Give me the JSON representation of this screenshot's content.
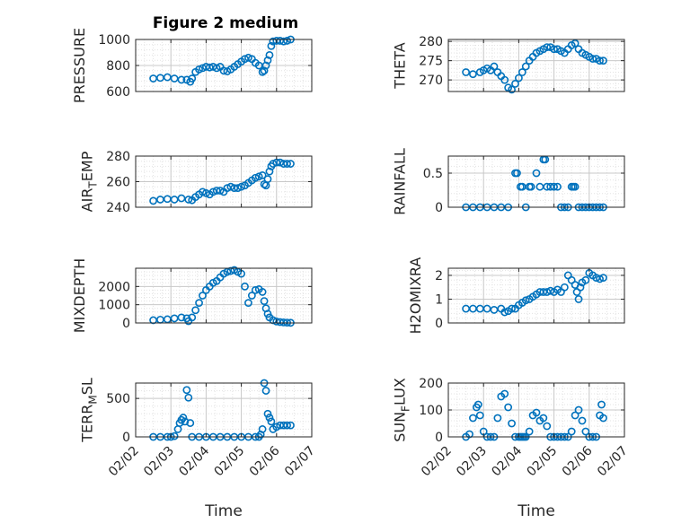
{
  "title": "Figure 2 medium",
  "colors": {
    "marker": "#0072BD",
    "axis": "#262626",
    "grid": "#c8c8c8",
    "minor_grid": "#e3e3e3"
  },
  "chart_data": [
    {
      "type": "scatter",
      "panel": "top-left",
      "ylabel": "PRESSURE",
      "ylabel_sub": "",
      "ylim": [
        600,
        1000
      ],
      "yticks": [
        600,
        800,
        1000
      ],
      "ytick_labels": [
        "600",
        "800",
        "1000"
      ],
      "x_dates": [
        "02/02",
        "02/03",
        "02/04",
        "02/05",
        "02/06",
        "02/07"
      ],
      "grid": true,
      "minor_grid": true,
      "xlabel": "",
      "x": [
        2.5,
        2.7,
        2.9,
        3.1,
        3.3,
        3.45,
        3.55,
        3.6,
        3.7,
        3.8,
        3.9,
        4.0,
        4.1,
        4.2,
        4.3,
        4.4,
        4.5,
        4.6,
        4.7,
        4.8,
        4.9,
        5.0,
        5.1,
        5.2,
        5.3,
        5.4,
        5.5,
        5.6,
        5.65,
        5.7,
        5.75,
        5.8,
        5.85,
        5.9,
        6.0,
        6.1,
        6.2,
        6.3,
        6.4
      ],
      "values": [
        700,
        705,
        710,
        700,
        690,
        690,
        675,
        700,
        750,
        770,
        780,
        790,
        785,
        790,
        780,
        790,
        760,
        755,
        770,
        790,
        810,
        830,
        850,
        860,
        850,
        820,
        800,
        750,
        760,
        800,
        840,
        880,
        950,
        985,
        990,
        990,
        985,
        990,
        1000
      ]
    },
    {
      "type": "scatter",
      "panel": "top-right",
      "ylabel": "THETA",
      "ylabel_sub": "",
      "ylim": [
        267,
        280.5
      ],
      "yticks": [
        270,
        275,
        280
      ],
      "ytick_labels": [
        "270",
        "275",
        "280"
      ],
      "x_dates": [
        "02/02",
        "02/03",
        "02/04",
        "02/05",
        "02/06",
        "02/07"
      ],
      "grid": true,
      "minor_grid": true,
      "xlabel": "",
      "x": [
        2.5,
        2.7,
        2.9,
        3.0,
        3.1,
        3.2,
        3.3,
        3.4,
        3.5,
        3.6,
        3.7,
        3.8,
        3.9,
        4.0,
        4.1,
        4.2,
        4.3,
        4.4,
        4.5,
        4.6,
        4.7,
        4.8,
        4.9,
        5.0,
        5.1,
        5.2,
        5.3,
        5.4,
        5.5,
        5.6,
        5.7,
        5.8,
        5.9,
        6.0,
        6.1,
        6.2,
        6.3,
        6.4
      ],
      "values": [
        272,
        271.5,
        272,
        272.5,
        273,
        272.5,
        273.5,
        272,
        271,
        270,
        268,
        267.5,
        269,
        270.5,
        272,
        273.5,
        275,
        276,
        277,
        277.5,
        278,
        278.5,
        278.5,
        278,
        278,
        277.5,
        277,
        278,
        279,
        279.5,
        278,
        277,
        276.5,
        276,
        275.5,
        275.5,
        275,
        275
      ]
    },
    {
      "type": "scatter",
      "panel": "row2-left",
      "ylabel": "AIR",
      "ylabel_sub": "T",
      "ylabel_after": "EMP",
      "ylim": [
        240,
        280
      ],
      "yticks": [
        240,
        260,
        280
      ],
      "ytick_labels": [
        "240",
        "260",
        "280"
      ],
      "x_dates": [
        "02/02",
        "02/03",
        "02/04",
        "02/05",
        "02/06",
        "02/07"
      ],
      "grid": true,
      "minor_grid": true,
      "xlabel": "",
      "x": [
        2.5,
        2.7,
        2.9,
        3.1,
        3.3,
        3.5,
        3.6,
        3.7,
        3.8,
        3.9,
        4.0,
        4.1,
        4.2,
        4.3,
        4.4,
        4.5,
        4.6,
        4.7,
        4.8,
        4.9,
        5.0,
        5.1,
        5.2,
        5.3,
        5.4,
        5.5,
        5.6,
        5.65,
        5.7,
        5.75,
        5.8,
        5.85,
        5.9,
        6.0,
        6.1,
        6.2,
        6.3,
        6.4
      ],
      "values": [
        245,
        246,
        246.5,
        246,
        247,
        246,
        245.5,
        248,
        250,
        252,
        251,
        250,
        252,
        253,
        253,
        252,
        255,
        256,
        255,
        255,
        256,
        257,
        259,
        261,
        263,
        264,
        265,
        258,
        257,
        262,
        268,
        272,
        274,
        275,
        275,
        274,
        274,
        274
      ]
    },
    {
      "type": "scatter",
      "panel": "row2-right",
      "ylabel": "RAINFALL",
      "ylabel_sub": "",
      "ylim": [
        0,
        0.75
      ],
      "yticks": [
        0,
        0.5
      ],
      "ytick_labels": [
        "0",
        "0.5"
      ],
      "x_dates": [
        "02/02",
        "02/03",
        "02/04",
        "02/05",
        "02/06",
        "02/07"
      ],
      "grid": true,
      "minor_grid": true,
      "xlabel": "",
      "x": [
        2.5,
        2.7,
        2.9,
        3.1,
        3.3,
        3.5,
        3.7,
        3.9,
        3.95,
        4.05,
        4.1,
        4.2,
        4.3,
        4.35,
        4.5,
        4.6,
        4.7,
        4.75,
        4.8,
        4.9,
        5.0,
        5.1,
        5.2,
        5.3,
        5.4,
        5.5,
        5.55,
        5.6,
        5.7,
        5.8,
        5.9,
        6.0,
        6.1,
        6.2,
        6.3,
        6.4
      ],
      "values": [
        0,
        0,
        0,
        0,
        0,
        0,
        0,
        0.5,
        0.5,
        0.3,
        0.3,
        0,
        0.3,
        0.3,
        0.5,
        0.3,
        0.7,
        0.7,
        0.3,
        0.3,
        0.3,
        0.3,
        0,
        0,
        0,
        0.3,
        0.3,
        0.3,
        0,
        0,
        0,
        0,
        0,
        0,
        0,
        0
      ]
    },
    {
      "type": "scatter",
      "panel": "row3-left",
      "ylabel": "MIXDEPTH",
      "ylabel_sub": "",
      "ylim": [
        0,
        3000
      ],
      "yticks": [
        0,
        1000,
        2000
      ],
      "ytick_labels": [
        "0",
        "1000",
        "2000"
      ],
      "x_dates": [
        "02/02",
        "02/03",
        "02/04",
        "02/05",
        "02/06",
        "02/07"
      ],
      "grid": true,
      "minor_grid": true,
      "xlabel": "",
      "x": [
        2.5,
        2.7,
        2.9,
        3.1,
        3.3,
        3.45,
        3.5,
        3.6,
        3.7,
        3.8,
        3.9,
        4.0,
        4.1,
        4.2,
        4.3,
        4.4,
        4.5,
        4.6,
        4.7,
        4.8,
        4.9,
        5.0,
        5.1,
        5.2,
        5.3,
        5.4,
        5.5,
        5.6,
        5.65,
        5.7,
        5.75,
        5.8,
        5.9,
        6.0,
        6.1,
        6.2,
        6.3,
        6.4
      ],
      "values": [
        150,
        180,
        200,
        250,
        300,
        250,
        100,
        300,
        700,
        1100,
        1500,
        1800,
        2000,
        2200,
        2300,
        2500,
        2700,
        2800,
        2850,
        2900,
        2800,
        2700,
        2000,
        1100,
        1500,
        1800,
        1850,
        1700,
        1200,
        800,
        500,
        300,
        150,
        80,
        50,
        30,
        20,
        10
      ]
    },
    {
      "type": "scatter",
      "panel": "row3-right",
      "ylabel": "H2OMIXRA",
      "ylabel_sub": "",
      "ylim": [
        0,
        2.3
      ],
      "yticks": [
        0,
        1,
        2
      ],
      "ytick_labels": [
        "0",
        "1",
        "2"
      ],
      "x_dates": [
        "02/02",
        "02/03",
        "02/04",
        "02/05",
        "02/06",
        "02/07"
      ],
      "grid": true,
      "minor_grid": true,
      "xlabel": "",
      "x": [
        2.5,
        2.7,
        2.9,
        3.1,
        3.3,
        3.5,
        3.6,
        3.7,
        3.8,
        3.9,
        4.0,
        4.1,
        4.2,
        4.3,
        4.4,
        4.5,
        4.6,
        4.7,
        4.8,
        4.9,
        5.0,
        5.1,
        5.2,
        5.3,
        5.4,
        5.5,
        5.6,
        5.65,
        5.7,
        5.75,
        5.8,
        5.9,
        6.0,
        6.1,
        6.2,
        6.3,
        6.4
      ],
      "values": [
        0.6,
        0.6,
        0.6,
        0.6,
        0.55,
        0.6,
        0.45,
        0.5,
        0.6,
        0.6,
        0.75,
        0.85,
        0.95,
        1.0,
        1.1,
        1.2,
        1.3,
        1.3,
        1.3,
        1.35,
        1.3,
        1.4,
        1.3,
        1.5,
        2.0,
        1.8,
        1.6,
        1.3,
        1.0,
        1.5,
        1.7,
        1.8,
        2.1,
        2.0,
        1.9,
        1.85,
        1.9
      ]
    },
    {
      "type": "scatter",
      "panel": "bottom-left",
      "ylabel": "TERR",
      "ylabel_sub": "M",
      "ylabel_after": "SL",
      "ylim": [
        0,
        700
      ],
      "yticks": [
        0,
        500
      ],
      "ytick_labels": [
        "0",
        "500"
      ],
      "x_dates": [
        "02/02",
        "02/03",
        "02/04",
        "02/05",
        "02/06",
        "02/07"
      ],
      "grid": true,
      "minor_grid": true,
      "xlabel": "Time",
      "x": [
        2.5,
        2.7,
        2.9,
        3.0,
        3.1,
        3.2,
        3.25,
        3.3,
        3.35,
        3.4,
        3.45,
        3.5,
        3.55,
        3.6,
        3.8,
        4.0,
        4.2,
        4.4,
        4.6,
        4.8,
        5.0,
        5.2,
        5.4,
        5.5,
        5.55,
        5.6,
        5.65,
        5.7,
        5.75,
        5.8,
        5.85,
        5.9,
        6.0,
        6.1,
        6.2,
        6.3,
        6.4
      ],
      "values": [
        0,
        0,
        0,
        0,
        10,
        100,
        180,
        220,
        250,
        200,
        610,
        510,
        180,
        0,
        0,
        0,
        0,
        0,
        0,
        0,
        0,
        0,
        0,
        0,
        30,
        100,
        700,
        600,
        300,
        250,
        200,
        100,
        130,
        150,
        150,
        150,
        150
      ]
    },
    {
      "type": "scatter",
      "panel": "bottom-right",
      "ylabel": "SUN",
      "ylabel_sub": "F",
      "ylabel_after": "LUX",
      "ylim": [
        0,
        200
      ],
      "yticks": [
        0,
        100,
        200
      ],
      "ytick_labels": [
        "0",
        "100",
        "200"
      ],
      "x_dates": [
        "02/02",
        "02/03",
        "02/04",
        "02/05",
        "02/06",
        "02/07"
      ],
      "grid": true,
      "minor_grid": true,
      "xlabel": "Time",
      "x": [
        2.5,
        2.6,
        2.7,
        2.8,
        2.85,
        2.9,
        3.0,
        3.1,
        3.2,
        3.3,
        3.4,
        3.5,
        3.6,
        3.7,
        3.8,
        3.9,
        4.0,
        4.05,
        4.1,
        4.15,
        4.2,
        4.3,
        4.4,
        4.5,
        4.6,
        4.7,
        4.8,
        4.9,
        5.0,
        5.1,
        5.2,
        5.3,
        5.4,
        5.5,
        5.6,
        5.7,
        5.8,
        5.9,
        6.0,
        6.1,
        6.2,
        6.3,
        6.35,
        6.4
      ],
      "values": [
        0,
        10,
        70,
        110,
        120,
        80,
        20,
        0,
        0,
        0,
        70,
        150,
        160,
        110,
        50,
        0,
        0,
        0,
        0,
        0,
        0,
        20,
        80,
        90,
        60,
        70,
        40,
        0,
        0,
        0,
        0,
        0,
        0,
        20,
        80,
        100,
        60,
        20,
        0,
        0,
        0,
        80,
        120,
        70
      ]
    }
  ]
}
